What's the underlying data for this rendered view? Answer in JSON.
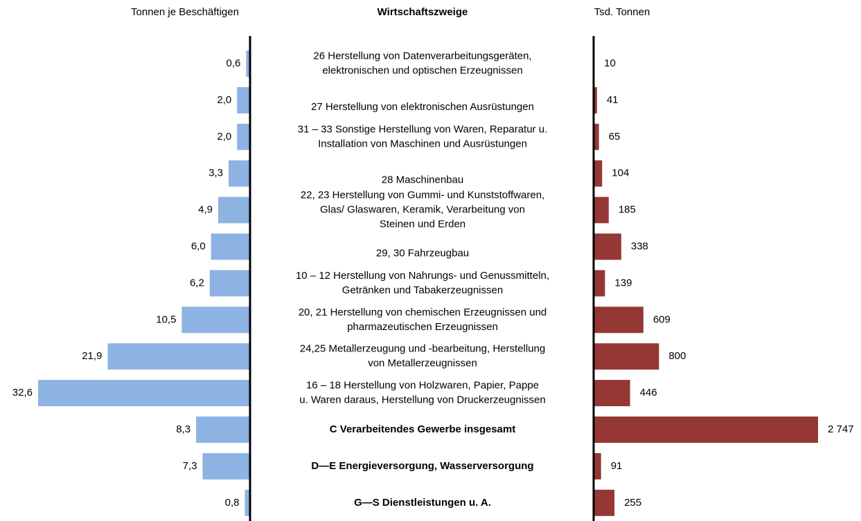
{
  "chart_data": {
    "type": "bar",
    "title": "Wirtschaftszweige",
    "categories": [
      "26  Herstellung von Datenverarbeitungsgeräten,\nelektronischen und optischen Erzeugnissen",
      "27  Herstellung von elektronischen Ausrüstungen",
      "31 – 33  Sonstige Herstellung von Waren, Reparatur u.\nInstallation von Maschinen und Ausrüstungen",
      "28  Maschinenbau",
      "22, 23  Herstellung von Gummi- und Kunststoffwaren,\nGlas/ Glaswaren, Keramik, Verarbeitung von\nSteinen und Erden",
      "29, 30  Fahrzeugbau",
      "10 – 12  Herstellung von Nahrungs- und Genussmitteln,\nGetränken und Tabakerzeugnissen",
      "20, 21  Herstellung von chemischen Erzeugnissen und\npharmazeutischen Erzeugnissen",
      "24,25  Metallerzeugung und -bearbeitung, Herstellung\nvon Metallerzeugnissen",
      "16 – 18  Herstellung von Holzwaren, Papier, Pappe\nu. Waren daraus, Herstellung von Druckerzeugnissen",
      "C  Verarbeitendes Gewerbe insgesamt",
      "D—E  Energieversorgung, Wasserversorgung",
      "G—S  Dienstleistungen u. A."
    ],
    "bold_categories": [
      10,
      11,
      12
    ],
    "series": [
      {
        "name": "Tonnen je Beschäftigen",
        "color": "#8db3e2",
        "values": [
          0.6,
          2.0,
          2.0,
          3.3,
          4.9,
          6.0,
          6.2,
          10.5,
          21.9,
          32.6,
          8.3,
          7.3,
          0.8
        ],
        "value_labels": [
          "0,6",
          "2,0",
          "2,0",
          "3,3",
          "4,9",
          "6,0",
          "6,2",
          "10,5",
          "21,9",
          "32,6",
          "8,3",
          "7,3",
          "0,8"
        ]
      },
      {
        "name": "Tsd. Tonnen",
        "color": "#953735",
        "values": [
          10,
          41,
          65,
          104,
          185,
          338,
          139,
          609,
          800,
          446,
          2747,
          91,
          255
        ],
        "value_labels": [
          "10",
          "41",
          "65",
          "104",
          "185",
          "338",
          "139",
          "609",
          "800",
          "446",
          "2 747",
          "91",
          "255"
        ]
      }
    ]
  }
}
